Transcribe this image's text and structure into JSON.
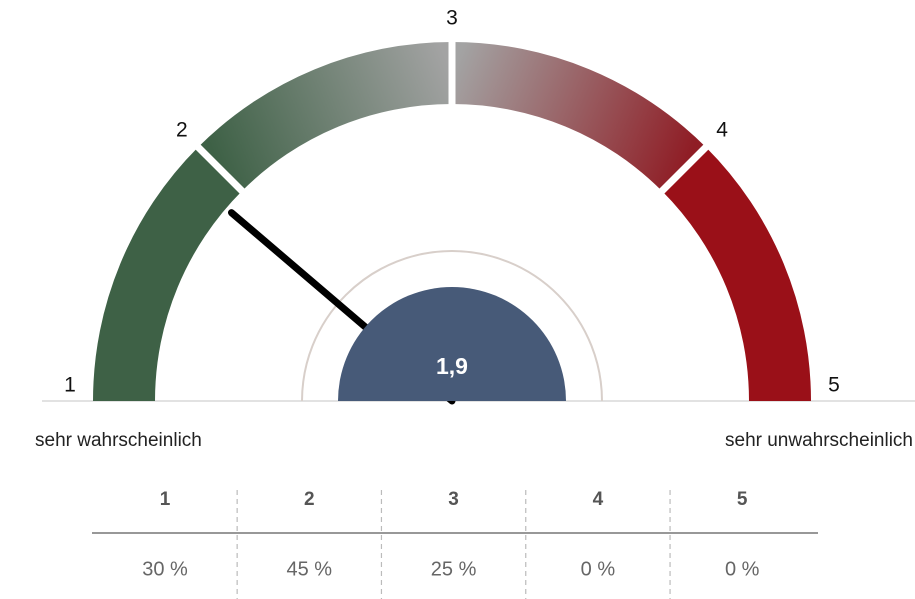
{
  "chart_data": {
    "type": "gauge",
    "lim": [
      1,
      5
    ],
    "ticks": [
      1,
      2,
      3,
      4,
      5
    ],
    "value": 1.9,
    "value_label": "1,9",
    "low_label": "sehr wahrscheinlich",
    "high_label": "sehr unwahrscheinlich",
    "band_colors": [
      [
        "#3e6146",
        "#3e6146"
      ],
      [
        "#3e6146",
        "#a3a3a3"
      ],
      [
        "#a3a3a3",
        "#8f1d25"
      ],
      [
        "#9a1018",
        "#9a1018"
      ]
    ],
    "needle_color": "#000000",
    "hub_color": "#475a78",
    "table": {
      "categories": [
        "1",
        "2",
        "3",
        "4",
        "5"
      ],
      "values": [
        30,
        45,
        25,
        0,
        0
      ],
      "value_labels": [
        "30 %",
        "45 %",
        "25 %",
        "0 %",
        "0 %"
      ]
    }
  }
}
